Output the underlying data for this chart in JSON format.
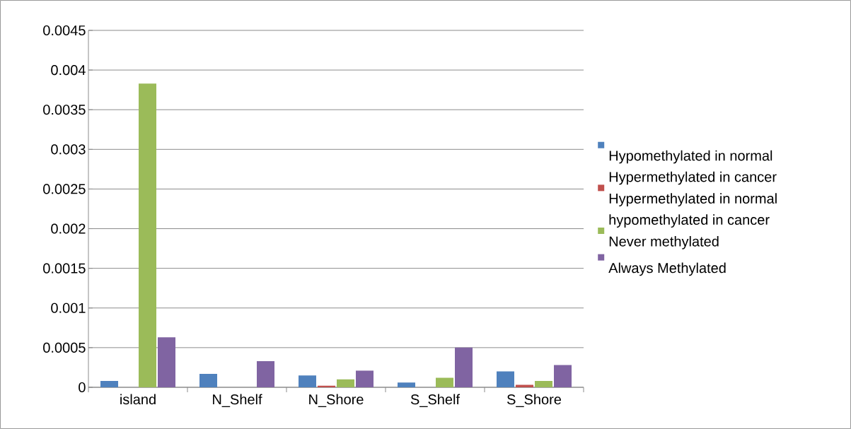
{
  "chart_data": {
    "type": "bar",
    "categories": [
      "island",
      "N_Shelf",
      "N_Shore",
      "S_Shelf",
      "S_Shore"
    ],
    "series": [
      {
        "name": "Hypomethylated in normal Hypermethylated in cancer",
        "color": "#4f81bd",
        "values": [
          8e-05,
          0.00017,
          0.00015,
          6e-05,
          0.0002
        ]
      },
      {
        "name": "Hypermethylated in normal hypomethylated in cancer",
        "color": "#c0504d",
        "values": [
          0,
          0,
          2e-05,
          0,
          3e-05
        ]
      },
      {
        "name": "Never methylated",
        "color": "#9bbb59",
        "values": [
          0.00383,
          0,
          0.0001,
          0.00012,
          8e-05
        ]
      },
      {
        "name": "Always Methylated",
        "color": "#8064a2",
        "values": [
          0.00063,
          0.00033,
          0.00021,
          0.0005,
          0.00028
        ]
      }
    ],
    "ylim": [
      0,
      0.0045
    ],
    "yticks": [
      0,
      0.0005,
      0.001,
      0.0015,
      0.002,
      0.0025,
      0.003,
      0.0035,
      0.004,
      0.0045
    ],
    "grid": "y",
    "legend": "right"
  }
}
